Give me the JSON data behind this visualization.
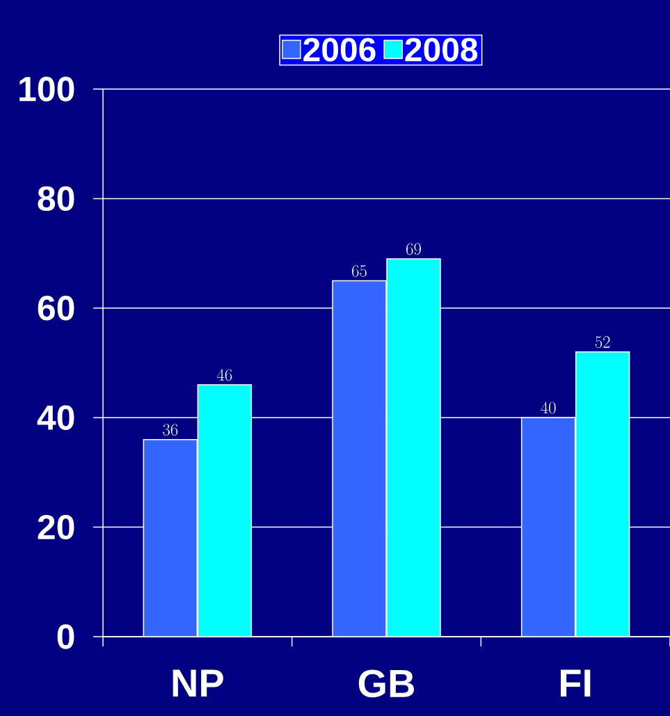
{
  "chart_data": {
    "type": "bar",
    "categories": [
      "NP",
      "GB",
      "FI"
    ],
    "series": [
      {
        "name": "2006",
        "color": "#3366ff",
        "values": [
          36,
          65,
          40
        ]
      },
      {
        "name": "2008",
        "color": "#00ffff",
        "values": [
          46,
          69,
          52
        ]
      }
    ],
    "ylim": [
      0,
      100
    ],
    "yticks": [
      0,
      20,
      40,
      60,
      80,
      100
    ],
    "grid": "y",
    "legend": "top",
    "data_labels": true
  }
}
